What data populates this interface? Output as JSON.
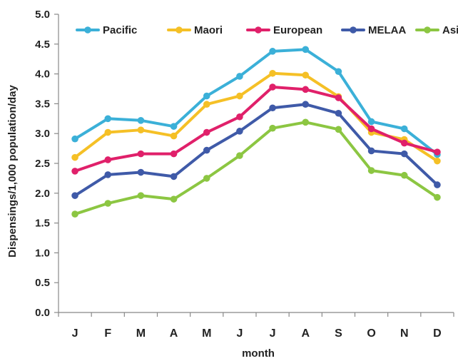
{
  "chart_data": {
    "type": "line",
    "xlabel": "month",
    "ylabel": "Dispensings/1,000 population/day",
    "categories": [
      "J",
      "F",
      "M",
      "A",
      "M",
      "J",
      "J",
      "A",
      "S",
      "O",
      "N",
      "D"
    ],
    "ylim": [
      0,
      5
    ],
    "yticks": [
      "0.0",
      "0.5",
      "1.0",
      "1.5",
      "2.0",
      "2.5",
      "3.0",
      "3.5",
      "4.0",
      "4.5",
      "5.0"
    ],
    "grid": false,
    "legend_position": "top",
    "series": [
      {
        "name": "Pacific",
        "color": "#3bb0d8",
        "values": [
          2.91,
          3.25,
          3.22,
          3.12,
          3.63,
          3.96,
          4.38,
          4.41,
          4.04,
          3.2,
          3.08,
          2.65
        ]
      },
      {
        "name": "Maori",
        "color": "#f5c026",
        "values": [
          2.6,
          3.02,
          3.06,
          2.96,
          3.49,
          3.63,
          4.01,
          3.98,
          3.62,
          3.02,
          2.9,
          2.54
        ]
      },
      {
        "name": "European",
        "color": "#e0206a",
        "values": [
          2.37,
          2.56,
          2.66,
          2.66,
          3.02,
          3.28,
          3.78,
          3.74,
          3.6,
          3.08,
          2.84,
          2.69
        ]
      },
      {
        "name": "MELAA",
        "color": "#3f5aa8",
        "values": [
          1.96,
          2.31,
          2.35,
          2.28,
          2.72,
          3.04,
          3.43,
          3.49,
          3.34,
          2.71,
          2.66,
          2.14
        ]
      },
      {
        "name": "Asian",
        "color": "#8cc642",
        "values": [
          1.65,
          1.83,
          1.96,
          1.9,
          2.25,
          2.63,
          3.09,
          3.19,
          3.07,
          2.38,
          2.3,
          1.93
        ]
      }
    ]
  }
}
